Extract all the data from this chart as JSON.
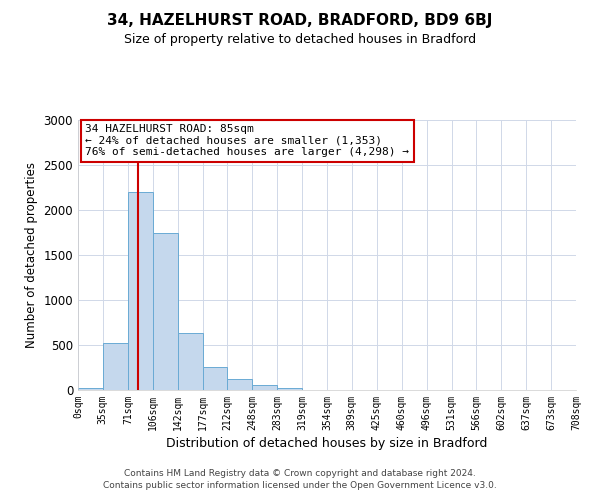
{
  "title": "34, HAZELHURST ROAD, BRADFORD, BD9 6BJ",
  "subtitle": "Size of property relative to detached houses in Bradford",
  "xlabel": "Distribution of detached houses by size in Bradford",
  "ylabel": "Number of detached properties",
  "bar_color": "#c5d8ed",
  "bar_edge_color": "#6aaad4",
  "background_color": "#ffffff",
  "grid_color": "#d0d8e8",
  "vline_x": 85,
  "vline_color": "#cc0000",
  "annotation_text": "34 HAZELHURST ROAD: 85sqm\n← 24% of detached houses are smaller (1,353)\n76% of semi-detached houses are larger (4,298) →",
  "annotation_box_color": "#cc0000",
  "ylim": [
    0,
    3000
  ],
  "bin_edges": [
    0,
    35,
    71,
    106,
    142,
    177,
    212,
    248,
    283,
    319,
    354,
    389,
    425,
    460,
    496,
    531,
    566,
    602,
    637,
    673,
    708
  ],
  "bar_heights": [
    25,
    520,
    2200,
    1750,
    635,
    260,
    120,
    60,
    25,
    0,
    0,
    0,
    0,
    0,
    0,
    0,
    0,
    0,
    0,
    0
  ],
  "tick_labels": [
    "0sqm",
    "35sqm",
    "71sqm",
    "106sqm",
    "142sqm",
    "177sqm",
    "212sqm",
    "248sqm",
    "283sqm",
    "319sqm",
    "354sqm",
    "389sqm",
    "425sqm",
    "460sqm",
    "496sqm",
    "531sqm",
    "566sqm",
    "602sqm",
    "637sqm",
    "673sqm",
    "708sqm"
  ],
  "footer_line1": "Contains HM Land Registry data © Crown copyright and database right 2024.",
  "footer_line2": "Contains public sector information licensed under the Open Government Licence v3.0."
}
